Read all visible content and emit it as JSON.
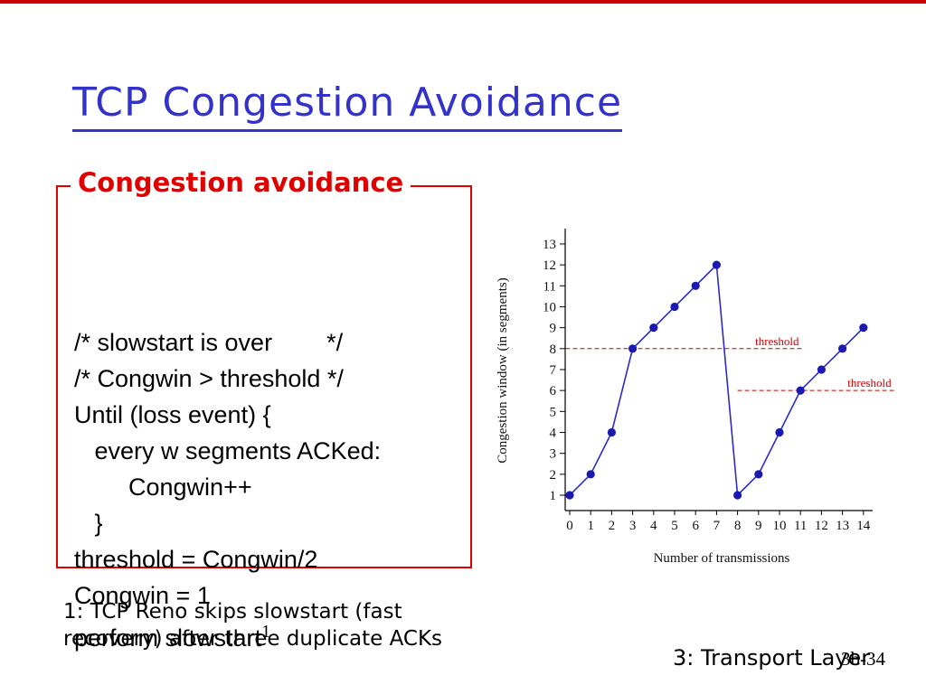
{
  "slide": {
    "title": "TCP Congestion Avoidance",
    "footnote": [
      "1: TCP Reno skips slowstart (fast",
      "recovery) after three duplicate ACKs"
    ],
    "footer_label": "3: Transport Layer",
    "page_number": "3b-34"
  },
  "code_box": {
    "title": "Congestion avoidance",
    "lines": [
      "/* slowstart is over        */",
      "/* Congwin > threshold */",
      "Until (loss event) {",
      "   every w segments ACKed:",
      "        Congwin++",
      "   }",
      "threshold = Congwin/2",
      "Congwin = 1"
    ],
    "last_line": "perform slowstart",
    "last_line_superscript": "1"
  },
  "colors": {
    "title_blue": "#3333cc",
    "accent_red": "#cc0000",
    "series_blue": "#2b2bc8",
    "point_blue": "#1a1ab0"
  },
  "chart_data": {
    "type": "line",
    "title": "",
    "xlabel": "Number of transmissions",
    "ylabel": "Congestion window (in segments)",
    "x": [
      0,
      1,
      2,
      3,
      4,
      5,
      6,
      7,
      8,
      9,
      10,
      11,
      12,
      13,
      14
    ],
    "y": [
      1,
      2,
      4,
      8,
      9,
      10,
      11,
      12,
      1,
      2,
      4,
      6,
      7,
      8,
      9
    ],
    "xticks": [
      0,
      1,
      2,
      3,
      4,
      5,
      6,
      7,
      8,
      9,
      10,
      11,
      12,
      13,
      14
    ],
    "yticks": [
      1,
      2,
      3,
      4,
      5,
      6,
      7,
      8,
      9,
      10,
      11,
      12,
      13
    ],
    "ylim": [
      0,
      13.5
    ],
    "grid": false,
    "legend": "none",
    "annotations": [
      {
        "label": "threshold",
        "y": 8,
        "x_start": -0.2,
        "x_end": 11.1
      },
      {
        "label": "threshold",
        "y": 6,
        "x_start": 8.0,
        "x_end": 15.5
      }
    ]
  }
}
